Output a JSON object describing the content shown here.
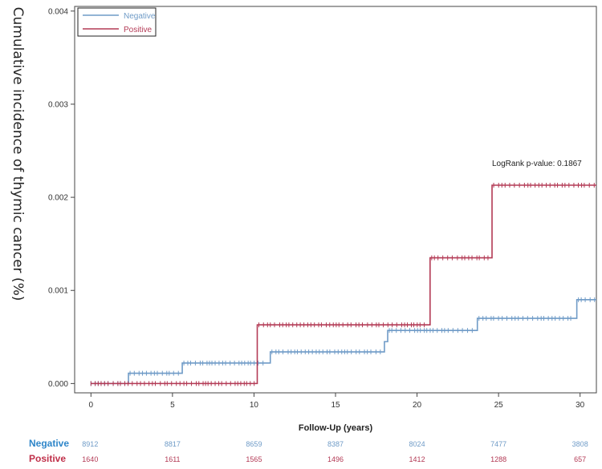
{
  "chart_data": {
    "type": "line",
    "title": "",
    "xlabel": "Follow-Up (years)",
    "ylabel": "Cumulative incidence of thymic cancer (%)",
    "xlim": [
      -1,
      31
    ],
    "ylim": [
      -0.0001,
      0.00405
    ],
    "x_ticks": [
      0,
      5,
      10,
      15,
      20,
      25,
      30
    ],
    "x_tick_labels": [
      "0",
      "5",
      "10",
      "15",
      "20",
      "25",
      "30"
    ],
    "y_ticks": [
      0,
      0.001,
      0.002,
      0.003,
      0.004
    ],
    "y_tick_labels": [
      "0.000",
      "0.001",
      "0.002",
      "0.003",
      "0.004"
    ],
    "legend_position": "top-left",
    "annotation": "LogRank p-value: 0.1867",
    "colors": {
      "Negative": "#6f9bc7",
      "Positive": "#b33a55"
    },
    "series": [
      {
        "name": "Negative",
        "steps": [
          {
            "x": 0,
            "y": 0
          },
          {
            "x": 2.3,
            "y": 0.00011
          },
          {
            "x": 5.6,
            "y": 0.00022
          },
          {
            "x": 11,
            "y": 0.00034
          },
          {
            "x": 18,
            "y": 0.00045
          },
          {
            "x": 18.2,
            "y": 0.00057
          },
          {
            "x": 23.7,
            "y": 0.0007
          },
          {
            "x": 29.8,
            "y": 0.0009
          },
          {
            "x": 31,
            "y": 0.0009
          }
        ],
        "censor_ranges": [
          [
            0,
            2.2
          ],
          [
            2.4,
            5.4
          ],
          [
            5.7,
            10.8
          ],
          [
            11.1,
            17.8
          ],
          [
            18.3,
            23.5
          ],
          [
            23.8,
            29.7
          ],
          [
            29.9,
            31
          ]
        ]
      },
      {
        "name": "Positive",
        "steps": [
          {
            "x": 0,
            "y": 0
          },
          {
            "x": 10.2,
            "y": 0.00063
          },
          {
            "x": 20.8,
            "y": 0.00135
          },
          {
            "x": 24.6,
            "y": 0.00213
          },
          {
            "x": 31,
            "y": 0.00213
          }
        ],
        "censor_ranges": [
          [
            0,
            10.1
          ],
          [
            10.3,
            20.6
          ],
          [
            20.9,
            24.4
          ],
          [
            24.7,
            31
          ]
        ]
      }
    ],
    "risk_table": {
      "times": [
        0,
        5,
        10,
        15,
        20,
        25,
        30
      ],
      "rows": [
        {
          "name": "Negative",
          "values": [
            "8912",
            "8817",
            "8659",
            "8387",
            "8024",
            "7477",
            "3808"
          ]
        },
        {
          "name": "Positive",
          "values": [
            "1640",
            "1611",
            "1565",
            "1496",
            "1412",
            "1288",
            "657"
          ]
        }
      ]
    }
  }
}
